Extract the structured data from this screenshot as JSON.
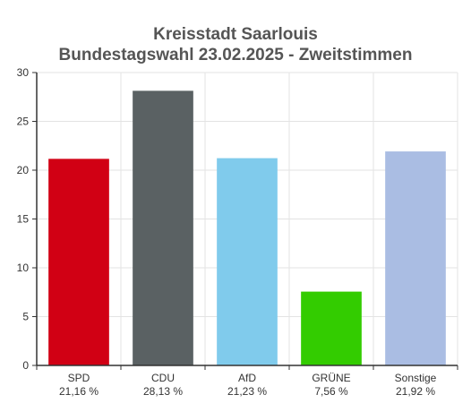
{
  "chart_data": {
    "type": "bar",
    "title": "Kreisstadt Saarlouis",
    "subtitle": "Bundestagswahl 23.02.2025  - Zweitstimmen",
    "categories": [
      "SPD",
      "CDU",
      "AfD",
      "GRÜNE",
      "Sonstige"
    ],
    "value_labels": [
      "21,16 %",
      "28,13 %",
      "21,23 %",
      "7,56 %",
      "21,92 %"
    ],
    "values": [
      21.16,
      28.13,
      21.23,
      7.56,
      21.92
    ],
    "colors": [
      "#d10014",
      "#5a6163",
      "#80cbec",
      "#33cc00",
      "#aabde3"
    ],
    "ylim": [
      0,
      30
    ],
    "yticks": [
      "0",
      "5",
      "10",
      "15",
      "20",
      "25",
      "30"
    ],
    "ytick_values": [
      0,
      5,
      10,
      15,
      20,
      25,
      30
    ],
    "xlabel": "",
    "ylabel": "",
    "grid": true,
    "legend": "none"
  }
}
